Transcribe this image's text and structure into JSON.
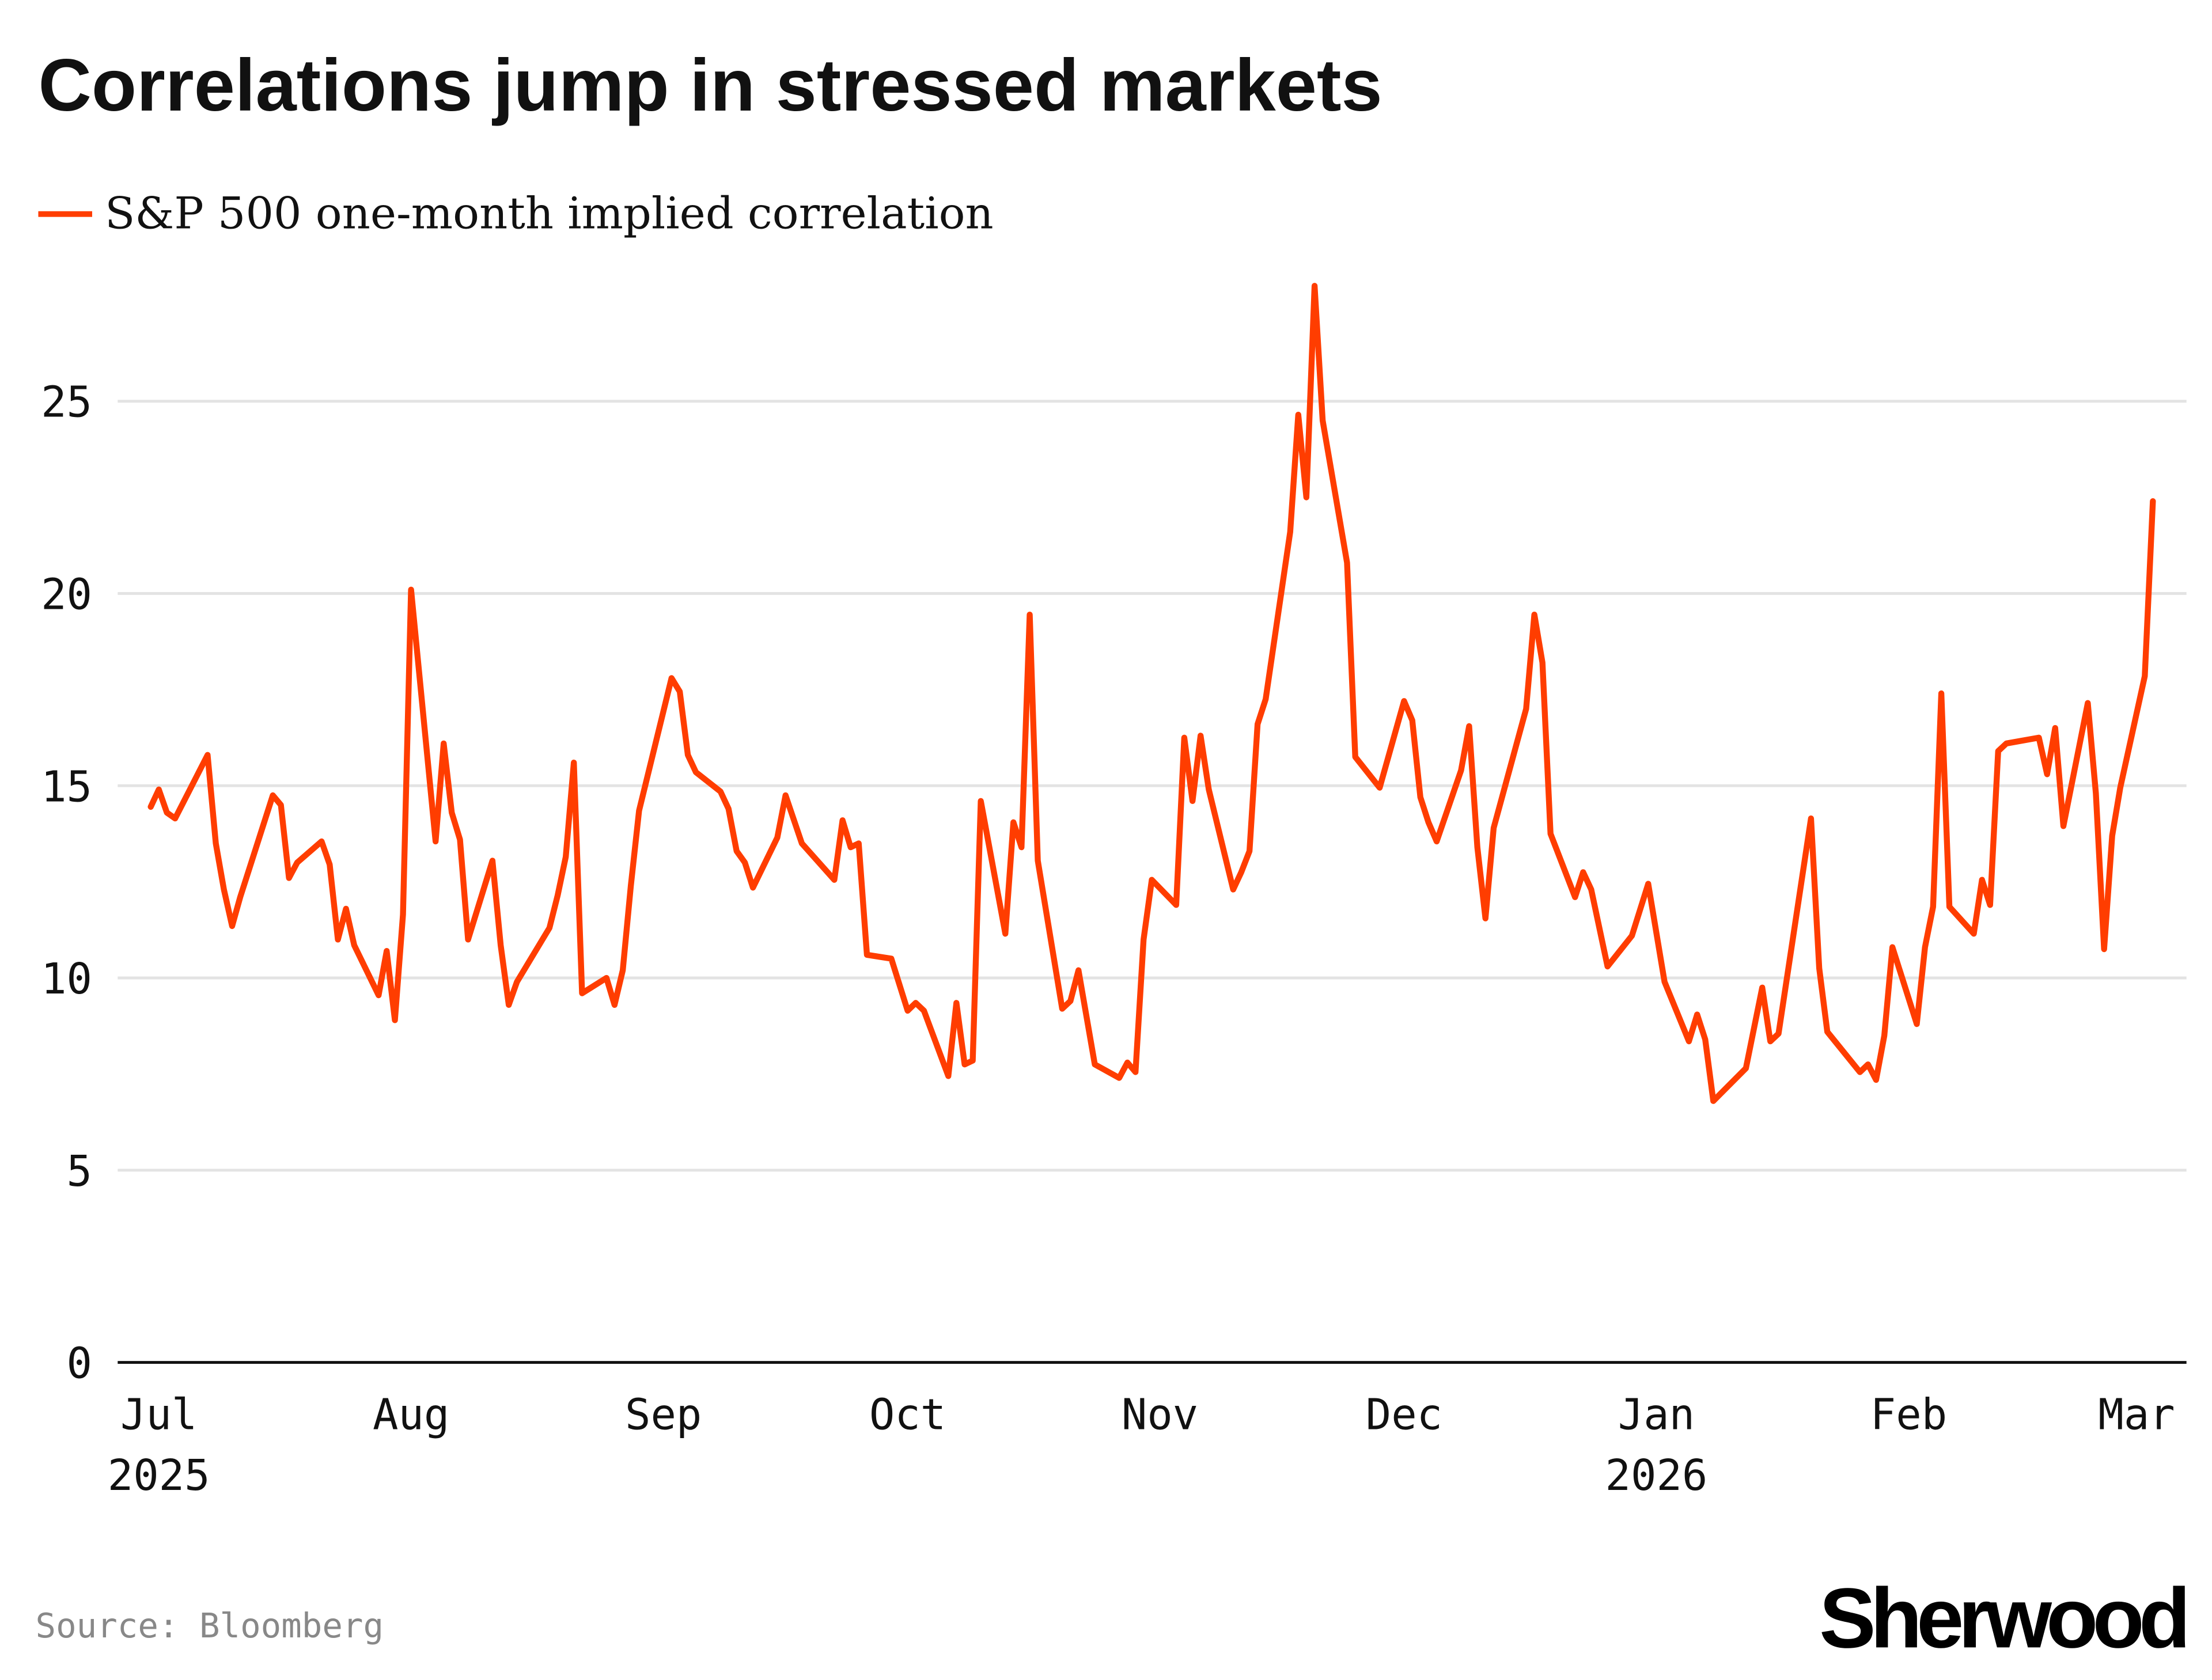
{
  "title": "Correlations jump in stressed markets",
  "source": "Source: Bloomberg",
  "logo_text": "Sherwood",
  "colors": {
    "series": "#ff3d00",
    "grid": "#e3e3e3",
    "axis": "#111111"
  },
  "chart_data": {
    "type": "line",
    "title": "Correlations jump in stressed markets",
    "xlabel": "",
    "ylabel": "",
    "ylim": [
      0,
      27.5
    ],
    "yticks": [
      "0",
      "5",
      "10",
      "15",
      "20",
      "25"
    ],
    "xticks": [
      {
        "date": "2025-07-01",
        "label": "Jul",
        "sub": "2025"
      },
      {
        "date": "2025-08-01",
        "label": "Aug",
        "sub": ""
      },
      {
        "date": "2025-09-01",
        "label": "Sep",
        "sub": ""
      },
      {
        "date": "2025-10-01",
        "label": "Oct",
        "sub": ""
      },
      {
        "date": "2025-11-01",
        "label": "Nov",
        "sub": ""
      },
      {
        "date": "2025-12-01",
        "label": "Dec",
        "sub": ""
      },
      {
        "date": "2026-01-01",
        "label": "Jan",
        "sub": "2026"
      },
      {
        "date": "2026-02-01",
        "label": "Feb",
        "sub": ""
      },
      {
        "date": "2026-03-01",
        "label": "Mar",
        "sub": ""
      }
    ],
    "grid": true,
    "legend_placement": "top-left",
    "series": [
      {
        "name": "S&P 500 one-month implied correlation",
        "points": [
          [
            "2025-06-30",
            14.45
          ],
          [
            "2025-07-01",
            14.9
          ],
          [
            "2025-07-02",
            14.3
          ],
          [
            "2025-07-03",
            14.15
          ],
          [
            "2025-07-07",
            15.8
          ],
          [
            "2025-07-08",
            13.5
          ],
          [
            "2025-07-09",
            12.3
          ],
          [
            "2025-07-10",
            11.35
          ],
          [
            "2025-07-11",
            12.1
          ],
          [
            "2025-07-15",
            14.75
          ],
          [
            "2025-07-16",
            14.5
          ],
          [
            "2025-07-17",
            12.6
          ],
          [
            "2025-07-18",
            13.0
          ],
          [
            "2025-07-21",
            13.55
          ],
          [
            "2025-07-22",
            12.95
          ],
          [
            "2025-07-23",
            11.0
          ],
          [
            "2025-07-24",
            11.8
          ],
          [
            "2025-07-25",
            10.85
          ],
          [
            "2025-07-28",
            9.55
          ],
          [
            "2025-07-29",
            10.7
          ],
          [
            "2025-07-30",
            8.9
          ],
          [
            "2025-07-31",
            11.65
          ],
          [
            "2025-08-01",
            20.1
          ],
          [
            "2025-08-04",
            13.55
          ],
          [
            "2025-08-05",
            16.1
          ],
          [
            "2025-08-06",
            14.3
          ],
          [
            "2025-08-07",
            13.6
          ],
          [
            "2025-08-08",
            11.0
          ],
          [
            "2025-08-11",
            13.05
          ],
          [
            "2025-08-12",
            10.85
          ],
          [
            "2025-08-13",
            9.3
          ],
          [
            "2025-08-14",
            9.9
          ],
          [
            "2025-08-18",
            11.3
          ],
          [
            "2025-08-19",
            12.15
          ],
          [
            "2025-08-20",
            13.15
          ],
          [
            "2025-08-21",
            15.6
          ],
          [
            "2025-08-22",
            9.6
          ],
          [
            "2025-08-25",
            10.0
          ],
          [
            "2025-08-26",
            9.3
          ],
          [
            "2025-08-27",
            10.2
          ],
          [
            "2025-08-28",
            12.4
          ],
          [
            "2025-08-29",
            14.35
          ],
          [
            "2025-09-02",
            17.8
          ],
          [
            "2025-09-03",
            17.45
          ],
          [
            "2025-09-04",
            15.8
          ],
          [
            "2025-09-05",
            15.35
          ],
          [
            "2025-09-08",
            14.85
          ],
          [
            "2025-09-09",
            14.4
          ],
          [
            "2025-09-10",
            13.3
          ],
          [
            "2025-09-11",
            13.0
          ],
          [
            "2025-09-12",
            12.35
          ],
          [
            "2025-09-15",
            13.65
          ],
          [
            "2025-09-16",
            14.75
          ],
          [
            "2025-09-18",
            13.5
          ],
          [
            "2025-09-22",
            12.55
          ],
          [
            "2025-09-23",
            14.1
          ],
          [
            "2025-09-24",
            13.4
          ],
          [
            "2025-09-25",
            13.5
          ],
          [
            "2025-09-26",
            10.6
          ],
          [
            "2025-09-29",
            10.5
          ],
          [
            "2025-10-01",
            9.15
          ],
          [
            "2025-10-02",
            9.35
          ],
          [
            "2025-10-03",
            9.15
          ],
          [
            "2025-10-06",
            7.45
          ],
          [
            "2025-10-07",
            9.35
          ],
          [
            "2025-10-08",
            7.75
          ],
          [
            "2025-10-09",
            7.85
          ],
          [
            "2025-10-10",
            14.6
          ],
          [
            "2025-10-13",
            11.15
          ],
          [
            "2025-10-14",
            14.05
          ],
          [
            "2025-10-15",
            13.4
          ],
          [
            "2025-10-16",
            19.45
          ],
          [
            "2025-10-17",
            13.05
          ],
          [
            "2025-10-20",
            9.2
          ],
          [
            "2025-10-21",
            9.4
          ],
          [
            "2025-10-22",
            10.2
          ],
          [
            "2025-10-24",
            7.75
          ],
          [
            "2025-10-27",
            7.4
          ],
          [
            "2025-10-28",
            7.8
          ],
          [
            "2025-10-29",
            7.55
          ],
          [
            "2025-10-30",
            11.0
          ],
          [
            "2025-10-31",
            12.55
          ],
          [
            "2025-11-03",
            11.9
          ],
          [
            "2025-11-04",
            16.25
          ],
          [
            "2025-11-05",
            14.6
          ],
          [
            "2025-11-06",
            16.3
          ],
          [
            "2025-11-07",
            14.9
          ],
          [
            "2025-11-10",
            12.3
          ],
          [
            "2025-11-11",
            12.75
          ],
          [
            "2025-11-12",
            13.3
          ],
          [
            "2025-11-13",
            16.6
          ],
          [
            "2025-11-14",
            17.25
          ],
          [
            "2025-11-17",
            21.6
          ],
          [
            "2025-11-18",
            24.65
          ],
          [
            "2025-11-19",
            22.5
          ],
          [
            "2025-11-20",
            28.0
          ],
          [
            "2025-11-21",
            24.5
          ],
          [
            "2025-11-24",
            20.8
          ],
          [
            "2025-11-25",
            15.75
          ],
          [
            "2025-11-28",
            14.95
          ],
          [
            "2025-12-01",
            17.2
          ],
          [
            "2025-12-02",
            16.7
          ],
          [
            "2025-12-03",
            14.7
          ],
          [
            "2025-12-04",
            14.05
          ],
          [
            "2025-12-05",
            13.55
          ],
          [
            "2025-12-08",
            15.4
          ],
          [
            "2025-12-09",
            16.55
          ],
          [
            "2025-12-10",
            13.4
          ],
          [
            "2025-12-11",
            11.55
          ],
          [
            "2025-12-12",
            13.9
          ],
          [
            "2025-12-16",
            17.0
          ],
          [
            "2025-12-17",
            19.45
          ],
          [
            "2025-12-18",
            18.2
          ],
          [
            "2025-12-19",
            13.75
          ],
          [
            "2025-12-22",
            12.1
          ],
          [
            "2025-12-23",
            12.75
          ],
          [
            "2025-12-24",
            12.3
          ],
          [
            "2025-12-26",
            10.3
          ],
          [
            "2025-12-29",
            11.1
          ],
          [
            "2025-12-31",
            12.45
          ],
          [
            "2026-01-02",
            9.9
          ],
          [
            "2026-01-05",
            8.35
          ],
          [
            "2026-01-06",
            9.05
          ],
          [
            "2026-01-07",
            8.4
          ],
          [
            "2026-01-08",
            6.8
          ],
          [
            "2026-01-12",
            7.65
          ],
          [
            "2026-01-14",
            9.75
          ],
          [
            "2026-01-15",
            8.35
          ],
          [
            "2026-01-16",
            8.55
          ],
          [
            "2026-01-20",
            14.15
          ],
          [
            "2026-01-21",
            10.25
          ],
          [
            "2026-01-22",
            8.6
          ],
          [
            "2026-01-26",
            7.55
          ],
          [
            "2026-01-27",
            7.75
          ],
          [
            "2026-01-28",
            7.35
          ],
          [
            "2026-01-29",
            8.5
          ],
          [
            "2026-01-30",
            10.8
          ],
          [
            "2026-02-02",
            8.8
          ],
          [
            "2026-02-03",
            10.8
          ],
          [
            "2026-02-04",
            11.85
          ],
          [
            "2026-02-05",
            17.4
          ],
          [
            "2026-02-06",
            11.85
          ],
          [
            "2026-02-09",
            11.15
          ],
          [
            "2026-02-10",
            12.55
          ],
          [
            "2026-02-11",
            11.9
          ],
          [
            "2026-02-12",
            15.9
          ],
          [
            "2026-02-13",
            16.1
          ],
          [
            "2026-02-17",
            16.25
          ],
          [
            "2026-02-18",
            15.3
          ],
          [
            "2026-02-19",
            16.5
          ],
          [
            "2026-02-20",
            13.95
          ],
          [
            "2026-02-23",
            17.15
          ],
          [
            "2026-02-24",
            14.8
          ],
          [
            "2026-02-25",
            10.75
          ],
          [
            "2026-02-26",
            13.7
          ],
          [
            "2026-02-27",
            14.95
          ],
          [
            "2026-03-02",
            17.85
          ],
          [
            "2026-03-03",
            22.4
          ]
        ]
      }
    ]
  }
}
